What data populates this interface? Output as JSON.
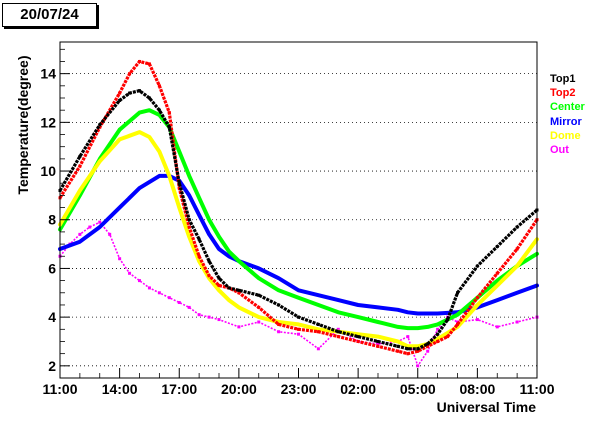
{
  "date_label": "20/07/24",
  "chart_data": {
    "type": "line",
    "title": "",
    "xlabel": "Universal Time",
    "ylabel": "Temperature(degree)",
    "xlim": [
      0,
      24
    ],
    "ylim": [
      1.5,
      15.3
    ],
    "x_unit": "hours since 11:00 UT",
    "x_ticks": [
      "11:00",
      "14:00",
      "17:00",
      "20:00",
      "23:00",
      "02:00",
      "05:00",
      "08:00",
      "11:00"
    ],
    "y_ticks": [
      2,
      4,
      6,
      8,
      10,
      12,
      14
    ],
    "grid": "horizontal dotted",
    "legend_position": "right",
    "series": [
      {
        "name": "Top1",
        "color": "#000000",
        "style": "markers",
        "x": [
          0,
          1,
          2,
          3,
          3.5,
          4,
          4.5,
          5,
          5.5,
          6,
          6.5,
          7,
          7.5,
          8,
          8.5,
          9,
          10,
          11,
          12,
          13,
          14,
          15,
          16,
          17,
          17.5,
          18,
          18.5,
          19,
          19.5,
          20,
          21,
          22,
          23,
          24
        ],
        "y": [
          9.2,
          10.6,
          11.9,
          12.9,
          13.2,
          13.3,
          13.0,
          12.5,
          11.8,
          9.5,
          8.0,
          7.2,
          6.3,
          5.6,
          5.2,
          5.1,
          4.9,
          4.5,
          4.0,
          3.7,
          3.4,
          3.2,
          3.0,
          2.8,
          2.7,
          2.7,
          2.9,
          3.3,
          3.9,
          5.0,
          6.1,
          6.9,
          7.7,
          8.4
        ]
      },
      {
        "name": "Top2",
        "color": "#ff0000",
        "style": "markers",
        "x": [
          0,
          1,
          2,
          3,
          3.5,
          4,
          4.5,
          5,
          5.5,
          6,
          6.5,
          7,
          7.5,
          8,
          8.5,
          9,
          10,
          11,
          12,
          13,
          14,
          15,
          16,
          17,
          17.5,
          18,
          18.5,
          19,
          19.5,
          20,
          21,
          22,
          23,
          24
        ],
        "y": [
          8.9,
          10.2,
          11.8,
          13.2,
          14.0,
          14.5,
          14.4,
          13.5,
          12.4,
          9.3,
          7.7,
          6.5,
          5.7,
          5.3,
          5.2,
          5.0,
          4.4,
          3.7,
          3.5,
          3.4,
          3.2,
          3.0,
          2.8,
          2.6,
          2.5,
          2.6,
          2.8,
          3.0,
          3.2,
          3.7,
          4.8,
          5.8,
          6.8,
          8.0
        ]
      },
      {
        "name": "Center",
        "color": "#00ff00",
        "style": "line",
        "x": [
          0,
          1,
          2,
          3,
          4,
          4.5,
          5,
          5.5,
          6,
          6.5,
          7,
          7.5,
          8,
          8.5,
          9,
          10,
          11,
          12,
          13,
          14,
          15,
          16,
          17,
          17.5,
          18,
          18.5,
          19,
          20,
          21,
          22,
          23,
          24
        ],
        "y": [
          7.6,
          9.0,
          10.5,
          11.7,
          12.4,
          12.5,
          12.3,
          11.8,
          10.8,
          9.8,
          8.9,
          8.0,
          7.3,
          6.7,
          6.3,
          5.6,
          5.1,
          4.8,
          4.5,
          4.2,
          4.0,
          3.8,
          3.6,
          3.55,
          3.55,
          3.6,
          3.7,
          4.1,
          4.8,
          5.5,
          6.1,
          6.6
        ]
      },
      {
        "name": "Mirror",
        "color": "#0000ff",
        "style": "line",
        "x": [
          0,
          1,
          2,
          3,
          4,
          5,
          5.5,
          6,
          6.5,
          7,
          7.5,
          8,
          8.5,
          9,
          10,
          11,
          12,
          13,
          14,
          15,
          16,
          17,
          17.5,
          18,
          18.5,
          19,
          20,
          21,
          22,
          23,
          24
        ],
        "y": [
          6.8,
          7.1,
          7.7,
          8.5,
          9.3,
          9.8,
          9.8,
          9.6,
          9.0,
          8.2,
          7.4,
          6.8,
          6.5,
          6.3,
          6.0,
          5.6,
          5.1,
          4.9,
          4.7,
          4.5,
          4.4,
          4.3,
          4.2,
          4.15,
          4.15,
          4.15,
          4.2,
          4.4,
          4.7,
          5.0,
          5.3
        ]
      },
      {
        "name": "Dome",
        "color": "#ffff00",
        "style": "line",
        "x": [
          0,
          1,
          2,
          3,
          4,
          4.5,
          5,
          5.5,
          6,
          6.5,
          7,
          7.5,
          8,
          8.5,
          9,
          10,
          11,
          12,
          13,
          14,
          15,
          16,
          17,
          17.5,
          18,
          18.5,
          19,
          20,
          21,
          22,
          23,
          24
        ],
        "y": [
          7.8,
          9.2,
          10.4,
          11.3,
          11.6,
          11.4,
          10.8,
          9.8,
          8.5,
          7.3,
          6.3,
          5.6,
          5.1,
          4.7,
          4.4,
          4.0,
          3.8,
          3.7,
          3.5,
          3.4,
          3.3,
          3.2,
          3.0,
          2.8,
          2.8,
          2.9,
          3.1,
          3.6,
          4.5,
          5.3,
          6.1,
          7.2
        ]
      },
      {
        "name": "Out",
        "color": "#ff00ff",
        "style": "markers",
        "x": [
          0,
          0.5,
          1,
          1.5,
          2,
          2.5,
          3,
          3.5,
          4,
          4.5,
          5,
          5.5,
          6,
          6.5,
          7,
          7.5,
          8,
          9,
          10,
          11,
          12,
          13,
          14,
          15,
          16,
          17,
          17.5,
          18,
          18.5,
          19,
          19.5,
          20,
          21,
          22,
          23,
          24
        ],
        "y": [
          6.5,
          7.0,
          7.4,
          7.7,
          7.9,
          7.4,
          6.4,
          5.8,
          5.5,
          5.2,
          5.0,
          4.8,
          4.6,
          4.4,
          4.1,
          4.0,
          3.9,
          3.6,
          3.8,
          3.4,
          3.3,
          2.7,
          3.5,
          3.0,
          2.9,
          3.0,
          3.2,
          2.0,
          2.6,
          3.5,
          4.0,
          3.8,
          3.9,
          3.6,
          3.8,
          4.0
        ]
      }
    ]
  }
}
